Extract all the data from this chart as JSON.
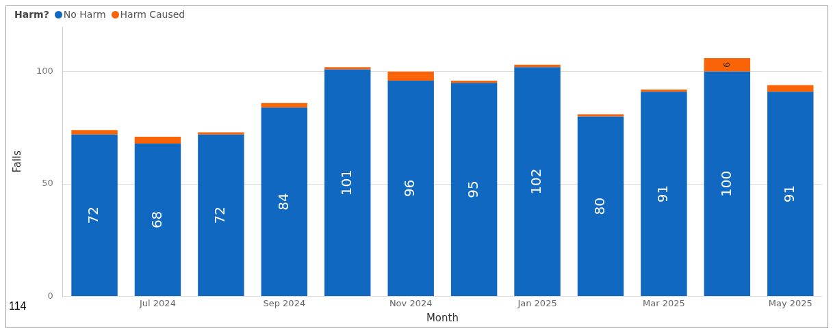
{
  "chart_data": {
    "type": "bar",
    "stacked": true,
    "xlabel": "Month",
    "ylabel": "Falls",
    "legend_title": "Harm?",
    "legend": "top left",
    "grid": "y",
    "categories": [
      null,
      "Jul 2024",
      null,
      "Sep 2024",
      null,
      "Nov 2024",
      null,
      "Jan 2025",
      null,
      "Mar 2025",
      null,
      "May 2025"
    ],
    "ylim": [
      0,
      120
    ],
    "yticks": [
      0,
      50,
      100
    ],
    "series": [
      {
        "name": "No Harm",
        "color": "#1168c0",
        "values": [
          72,
          68,
          72,
          84,
          101,
          96,
          95,
          102,
          80,
          91,
          100,
          91
        ],
        "value_labels": [
          "72",
          "68",
          "72",
          "84",
          "101",
          "96",
          "95",
          "102",
          "80",
          "91",
          "100",
          "91"
        ]
      },
      {
        "name": "Harm Caused",
        "color": "#f96409",
        "values": [
          2,
          3,
          1,
          2,
          1,
          4,
          1,
          1,
          1,
          1,
          6,
          3
        ],
        "value_labels": [
          null,
          null,
          null,
          null,
          null,
          null,
          null,
          null,
          null,
          null,
          "6",
          null
        ]
      }
    ],
    "annotations": [
      "114"
    ]
  }
}
